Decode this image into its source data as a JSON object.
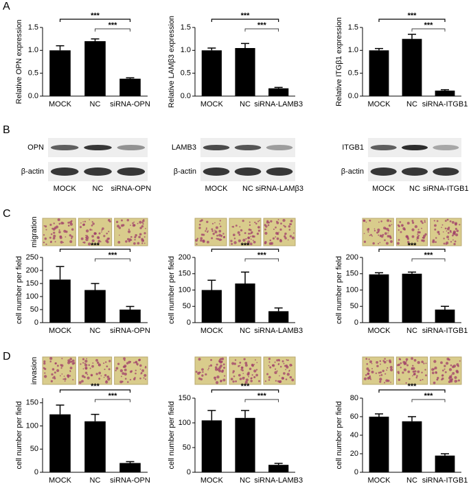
{
  "panel_labels": [
    "A",
    "B",
    "C",
    "D"
  ],
  "side_labels": [
    "migration",
    "invasion"
  ],
  "blots": [
    {
      "protein": "OPN",
      "control": "β-actin",
      "lanes": [
        "MOCK",
        "NC",
        "siRNA-OPN"
      ]
    },
    {
      "protein": "LAMB3",
      "control": "β-actin",
      "lanes": [
        "MOCK",
        "NC",
        "siRNA-LAMβ3"
      ]
    },
    {
      "protein": "ITGB1",
      "control": "β-actin",
      "lanes": [
        "MOCK",
        "NC",
        "siRNA-ITGB1"
      ]
    }
  ],
  "chart_data": [
    {
      "type": "bar",
      "y_label": "Relative OPN expression",
      "categories": [
        "MOCK",
        "NC",
        "siRNA-OPN"
      ],
      "values": [
        1.0,
        1.2,
        0.38
      ],
      "errors": [
        0.1,
        0.05,
        0.02
      ],
      "color": "#000000",
      "ylim": [
        0,
        1.5
      ],
      "yticks": [
        {
          "value": 0,
          "label": "0.0"
        },
        0.5,
        {
          "value": 1,
          "label": "1.0"
        },
        1.5
      ],
      "annotations": [
        "***",
        "***"
      ]
    },
    {
      "type": "bar",
      "y_label": "Relative LAMβ3 expression",
      "categories": [
        "MOCK",
        "NC",
        "siRNA-LAMB3"
      ],
      "values": [
        1.0,
        1.05,
        0.17
      ],
      "errors": [
        0.05,
        0.1,
        0.02
      ],
      "color": "#000000",
      "ylim": [
        0,
        1.5
      ],
      "yticks": [
        {
          "value": 0,
          "label": "0.0"
        },
        0.5,
        {
          "value": 1,
          "label": "1.0"
        },
        1.5
      ],
      "annotations": [
        "***",
        "***"
      ]
    },
    {
      "type": "bar",
      "y_label": "Relative ITGβ1 expression",
      "categories": [
        "MOCK",
        "NC",
        "siRNA-ITGB1"
      ],
      "values": [
        1.0,
        1.25,
        0.12
      ],
      "errors": [
        0.04,
        0.1,
        0.02
      ],
      "color": "#000000",
      "ylim": [
        0,
        1.5
      ],
      "yticks": [
        {
          "value": 0,
          "label": "0.0"
        },
        0.5,
        {
          "value": 1,
          "label": "1.0"
        },
        1.5
      ],
      "annotations": [
        "***",
        "***"
      ]
    },
    {
      "type": "bar",
      "y_label": "cell number per field",
      "categories": [
        "MOCK",
        "NC",
        "siRNA-OPN"
      ],
      "values": [
        165,
        125,
        50
      ],
      "errors": [
        50,
        25,
        12
      ],
      "color": "#000000",
      "ylim": [
        0,
        250
      ],
      "yticks": [
        0,
        50,
        100,
        150,
        200,
        250
      ],
      "annotations": [
        "***",
        "***"
      ]
    },
    {
      "type": "bar",
      "y_label": "cell number per field",
      "categories": [
        "MOCK",
        "NC",
        "siRNA-LAMB3"
      ],
      "values": [
        100,
        120,
        35
      ],
      "errors": [
        30,
        35,
        10
      ],
      "color": "#000000",
      "ylim": [
        0,
        200
      ],
      "yticks": [
        0,
        50,
        100,
        150,
        200
      ],
      "annotations": [
        "***",
        "***"
      ]
    },
    {
      "type": "bar",
      "y_label": "cell number per field",
      "categories": [
        "MOCK",
        "NC",
        "siRNA-ITGB1"
      ],
      "values": [
        148,
        150,
        40
      ],
      "errors": [
        5,
        5,
        10
      ],
      "color": "#000000",
      "ylim": [
        0,
        200
      ],
      "yticks": [
        0,
        50,
        100,
        150,
        200
      ],
      "annotations": [
        "***",
        "***"
      ]
    },
    {
      "type": "bar",
      "y_label": "cell number per field",
      "categories": [
        "MOCK",
        "NC",
        "siRNA-OPN"
      ],
      "values": [
        125,
        110,
        20
      ],
      "errors": [
        20,
        15,
        3
      ],
      "color": "#000000",
      "ylim": [
        0,
        160
      ],
      "yticks": [
        0,
        50,
        100,
        150
      ],
      "annotations": [
        "***",
        "***"
      ]
    },
    {
      "type": "bar",
      "y_label": "cell number per field",
      "categories": [
        "MOCK",
        "NC",
        "siRNA-LAMB3"
      ],
      "values": [
        105,
        110,
        15
      ],
      "errors": [
        20,
        15,
        3
      ],
      "color": "#000000",
      "ylim": [
        0,
        150
      ],
      "yticks": [
        0,
        50,
        100,
        150
      ],
      "annotations": [
        "***",
        "***"
      ]
    },
    {
      "type": "bar",
      "y_label": "cell number per field",
      "categories": [
        "MOCK",
        "NC",
        "siRNA-ITGB1"
      ],
      "values": [
        60,
        55,
        18
      ],
      "errors": [
        3,
        5,
        2
      ],
      "color": "#000000",
      "ylim": [
        0,
        80
      ],
      "yticks": [
        0,
        20,
        40,
        60,
        80
      ],
      "annotations": [
        "***",
        "***"
      ]
    }
  ]
}
